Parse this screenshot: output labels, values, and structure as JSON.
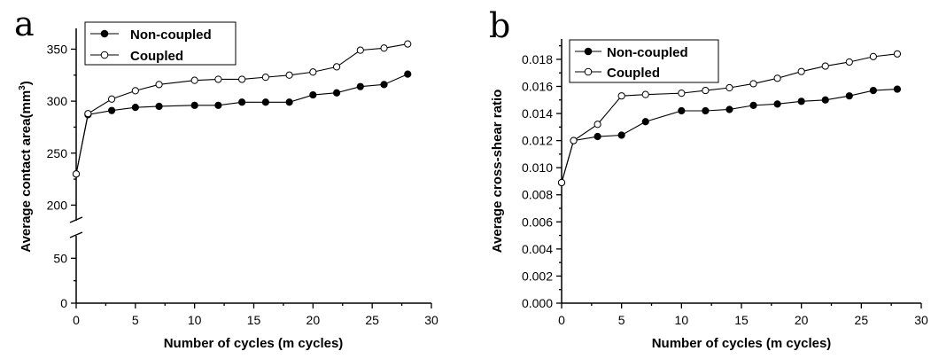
{
  "chart_data": [
    {
      "type": "line",
      "panel_label": "a",
      "title": "",
      "xlabel": "Number of cycles (m cycles)",
      "ylabel": "Average contact area(mm",
      "ylabel_superscript": "3",
      "ylabel_suffix": ")",
      "xlim": [
        0,
        30
      ],
      "ylim": [
        0,
        370
      ],
      "axis_break": [
        75,
        185
      ],
      "x_ticks": [
        0,
        5,
        10,
        15,
        20,
        25,
        30
      ],
      "y_ticks": [
        0,
        50,
        200,
        250,
        300,
        350
      ],
      "legend_position": "top-left",
      "grid": false,
      "series": [
        {
          "name": "Non-coupled",
          "marker": "filled-circle",
          "color": "#000000",
          "x": [
            0,
            1,
            3,
            5,
            7,
            10,
            12,
            14,
            16,
            18,
            20,
            22,
            24,
            26,
            28
          ],
          "y": [
            230,
            287,
            291,
            294,
            295,
            296,
            296,
            299,
            299,
            299,
            306,
            308,
            314,
            316,
            326
          ]
        },
        {
          "name": "Coupled",
          "marker": "open-circle",
          "color": "#000000",
          "x": [
            0,
            1,
            3,
            5,
            7,
            10,
            12,
            14,
            16,
            18,
            20,
            22,
            24,
            26,
            28
          ],
          "y": [
            230,
            288,
            302,
            310,
            316,
            320,
            321,
            321,
            323,
            325,
            328,
            333,
            349,
            351,
            355
          ]
        }
      ]
    },
    {
      "type": "line",
      "panel_label": "b",
      "title": "",
      "xlabel": "Number of cycles (m cycles)",
      "ylabel": "Average cross-shear ratio",
      "xlim": [
        0,
        30
      ],
      "ylim": [
        0,
        0.0195
      ],
      "x_ticks": [
        0,
        5,
        10,
        15,
        20,
        25,
        30
      ],
      "y_ticks": [
        "0.000",
        "0.002",
        "0.004",
        "0.006",
        "0.008",
        "0.010",
        "0.012",
        "0.014",
        "0.016",
        "0.018"
      ],
      "legend_position": "top-left",
      "grid": false,
      "series": [
        {
          "name": "Non-coupled",
          "marker": "filled-circle",
          "color": "#000000",
          "x": [
            0,
            1,
            3,
            5,
            7,
            10,
            12,
            14,
            16,
            18,
            20,
            22,
            24,
            26,
            28
          ],
          "y": [
            0.0089,
            0.012,
            0.0123,
            0.0124,
            0.0134,
            0.0142,
            0.0142,
            0.0143,
            0.0146,
            0.0147,
            0.0149,
            0.015,
            0.0153,
            0.0157,
            0.0158
          ]
        },
        {
          "name": "Coupled",
          "marker": "open-circle",
          "color": "#000000",
          "x": [
            0,
            1,
            3,
            5,
            7,
            10,
            12,
            14,
            16,
            18,
            20,
            22,
            24,
            26,
            28
          ],
          "y": [
            0.0089,
            0.012,
            0.0132,
            0.0153,
            0.0154,
            0.0155,
            0.0157,
            0.0159,
            0.0162,
            0.0166,
            0.0171,
            0.0175,
            0.0178,
            0.0182,
            0.0184
          ]
        }
      ]
    }
  ]
}
